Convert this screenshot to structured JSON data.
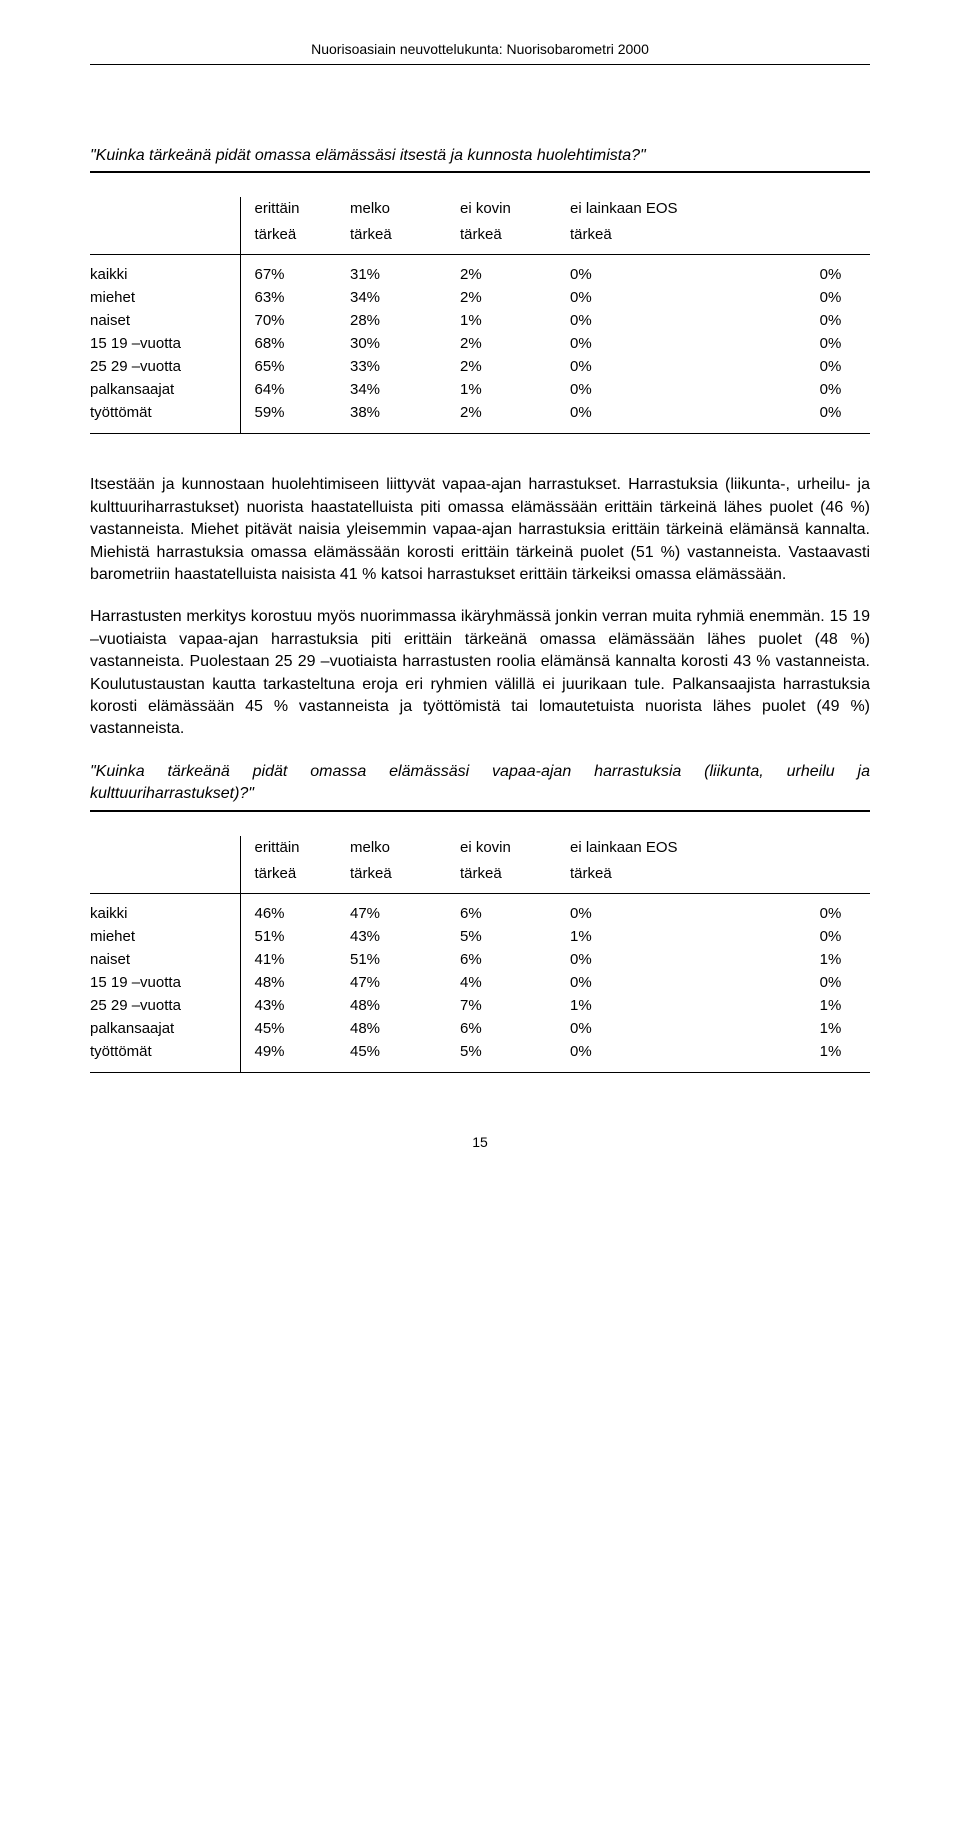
{
  "header": "Nuorisoasiain neuvottelukunta: Nuorisobarometri 2000",
  "q1": "\"Kuinka tärkeänä pidät omassa elämässäsi itsestä ja kunnosta huolehtimista?\"",
  "q2": "\"Kuinka tärkeänä pidät omassa elämässäsi vapaa-ajan harrastuksia (liikunta, urheilu ja kulttuuriharrastukset)?\"",
  "columns_top": [
    "erittäin",
    "melko",
    "ei kovin",
    "ei lainkaan EOS"
  ],
  "columns_bot": [
    "tärkeä",
    "tärkeä",
    "tärkeä",
    "tärkeä"
  ],
  "rows_labels": [
    "kaikki",
    "miehet",
    "naiset",
    "15 19 –vuotta",
    "25 29 –vuotta",
    "palkansaajat",
    "työttömät"
  ],
  "t1": {
    "r0": [
      "67%",
      "31%",
      "2%",
      "0%",
      "0%"
    ],
    "r1": [
      "63%",
      "34%",
      "2%",
      "0%",
      "0%"
    ],
    "r2": [
      "70%",
      "28%",
      "1%",
      "0%",
      "0%"
    ],
    "r3": [
      "68%",
      "30%",
      "2%",
      "0%",
      "0%"
    ],
    "r4": [
      "65%",
      "33%",
      "2%",
      "0%",
      "0%"
    ],
    "r5": [
      "64%",
      "34%",
      "1%",
      "0%",
      "0%"
    ],
    "r6": [
      "59%",
      "38%",
      "2%",
      "0%",
      "0%"
    ]
  },
  "t2": {
    "r0": [
      "46%",
      "47%",
      "6%",
      "0%",
      "0%"
    ],
    "r1": [
      "51%",
      "43%",
      "5%",
      "1%",
      "0%"
    ],
    "r2": [
      "41%",
      "51%",
      "6%",
      "0%",
      "1%"
    ],
    "r3": [
      "48%",
      "47%",
      "4%",
      "0%",
      "0%"
    ],
    "r4": [
      "43%",
      "48%",
      "7%",
      "1%",
      "1%"
    ],
    "r5": [
      "45%",
      "48%",
      "6%",
      "0%",
      "1%"
    ],
    "r6": [
      "49%",
      "45%",
      "5%",
      "0%",
      "1%"
    ]
  },
  "p1": "Itsestään ja kunnostaan huolehtimiseen liittyvät vapaa-ajan harrastukset. Harrastuksia (liikunta-, urheilu- ja kulttuuriharrastukset) nuorista haastatelluista piti omassa elämässään erittäin tärkeinä lähes puolet (46 %) vastanneista. Miehet pitävät naisia yleisemmin vapaa-ajan harrastuksia erittäin tärkeinä elämänsä kannalta. Miehistä harrastuksia omassa elämässään korosti erittäin tärkeinä puolet (51 %) vastanneista. Vastaavasti barometriin haastatelluista naisista 41 % katsoi harrastukset erittäin tärkeiksi omassa elämässään.",
  "p2": "Harrastusten merkitys korostuu myös nuorimmassa ikäryhmässä jonkin verran muita ryhmiä enemmän. 15 19 –vuotiaista vapaa-ajan harrastuksia piti erittäin tärkeänä omassa elämässään lähes puolet (48 %) vastanneista. Puolestaan 25 29 –vuotiaista harrastusten roolia elämänsä kannalta korosti 43 % vastanneista. Koulutustaustan kautta tarkasteltuna eroja eri ryhmien välillä ei juurikaan tule. Palkansaajista harrastuksia korosti elämässään 45 % vastanneista ja työttömistä tai lomautetuista nuorista lähes puolet (49 %) vastanneista.",
  "pagenum": "15"
}
